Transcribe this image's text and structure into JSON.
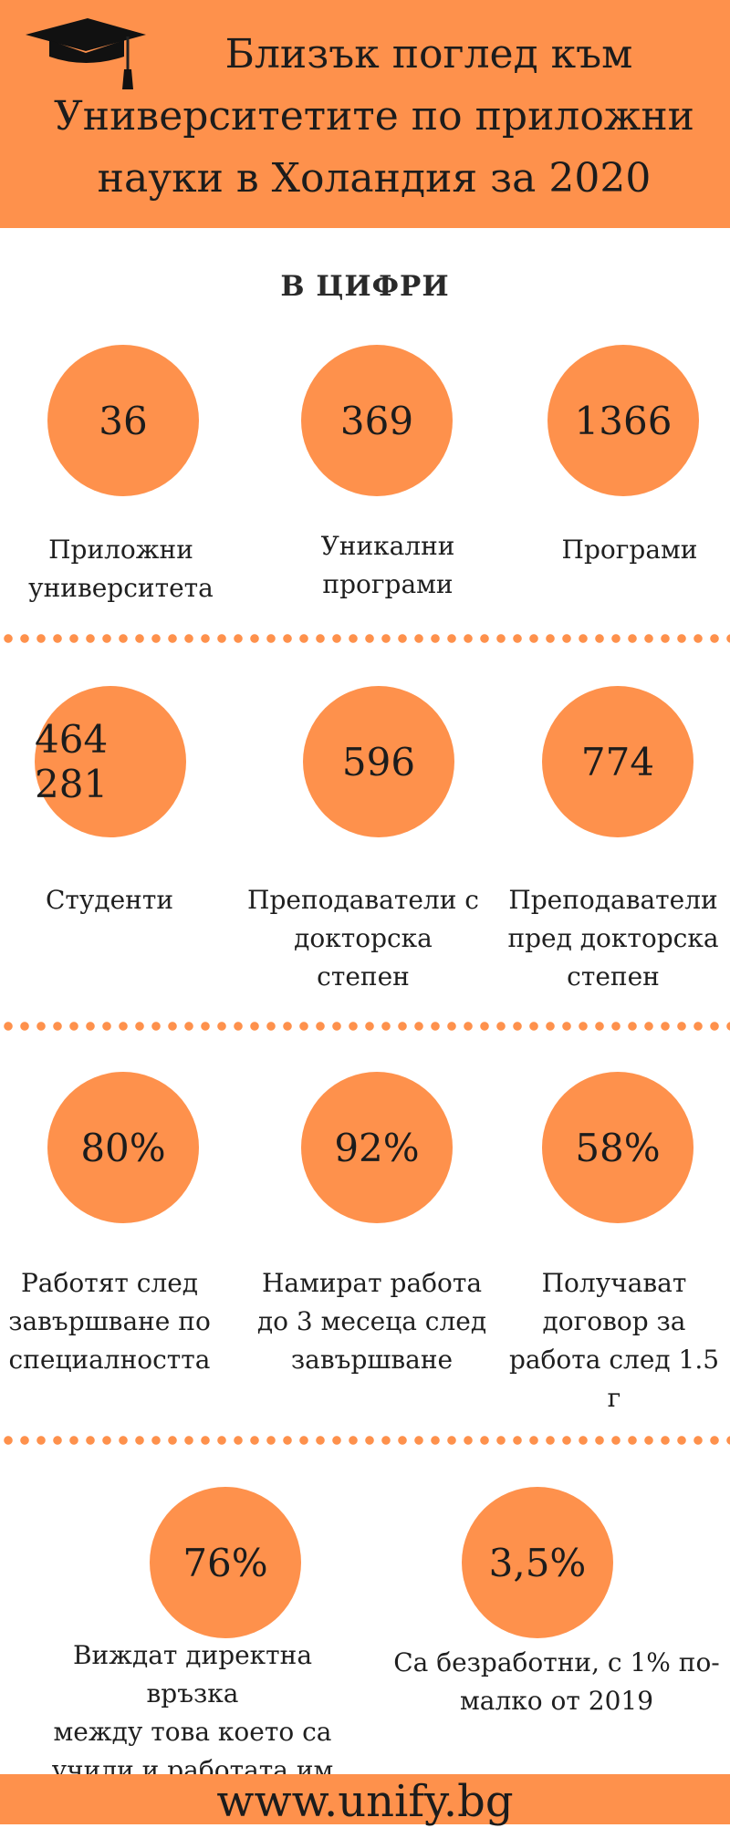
{
  "header": {
    "title_line1": "Близък поглед към",
    "title_line2": "Университетите по приложни",
    "title_line3": "науки в Холандия за 2020",
    "icon": "graduation-cap-icon"
  },
  "section_title": "В ЦИФРИ",
  "row1": [
    {
      "value": "36",
      "label_lines": [
        "Приложни",
        "университета"
      ]
    },
    {
      "value": "369",
      "label_lines": [
        "Уникални",
        "програми"
      ]
    },
    {
      "value": "1366",
      "label_lines": [
        "Програми"
      ]
    }
  ],
  "row2": [
    {
      "value": "464 281",
      "label_lines": [
        "Студенти"
      ]
    },
    {
      "value": "596",
      "label_lines": [
        "Преподаватели с",
        "докторска",
        "степен"
      ]
    },
    {
      "value": "774",
      "label_lines": [
        "Преподаватели",
        "пред докторска",
        "степен"
      ]
    }
  ],
  "row3": [
    {
      "value": "80%",
      "label_lines": [
        "Работят след",
        "завършване по",
        "специалността"
      ]
    },
    {
      "value": "92%",
      "label_lines": [
        "Намират работа",
        "до 3 месеца след",
        "завършване"
      ]
    },
    {
      "value": "58%",
      "label_lines": [
        "Получават",
        "договор за",
        "работа след 1.5 г"
      ]
    }
  ],
  "row4": [
    {
      "value": "76%",
      "label_lines": [
        "Виждат директна връзка",
        "между това което са",
        "учили и работата им сега"
      ]
    },
    {
      "value": "3,5%",
      "label_lines": [
        "Са безработни, с 1% по-",
        "малко от 2019"
      ]
    }
  ],
  "footer": {
    "url": "www.unify.bg"
  },
  "colors": {
    "accent": "#fe914c",
    "text": "#1f1f1f",
    "background": "#ffffff"
  }
}
